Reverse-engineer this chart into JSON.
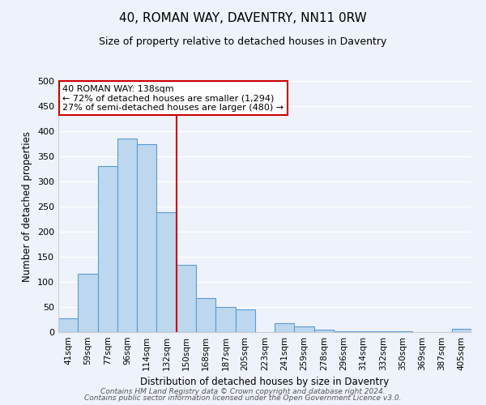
{
  "title": "40, ROMAN WAY, DAVENTRY, NN11 0RW",
  "subtitle": "Size of property relative to detached houses in Daventry",
  "xlabel": "Distribution of detached houses by size in Daventry",
  "ylabel": "Number of detached properties",
  "categories": [
    "41sqm",
    "59sqm",
    "77sqm",
    "96sqm",
    "114sqm",
    "132sqm",
    "150sqm",
    "168sqm",
    "187sqm",
    "205sqm",
    "223sqm",
    "241sqm",
    "259sqm",
    "278sqm",
    "296sqm",
    "314sqm",
    "332sqm",
    "350sqm",
    "369sqm",
    "387sqm",
    "405sqm"
  ],
  "values": [
    28,
    116,
    330,
    385,
    375,
    238,
    134,
    68,
    50,
    45,
    0,
    18,
    12,
    5,
    2,
    1,
    1,
    1,
    0,
    0,
    6
  ],
  "bar_color": "#bdd7ee",
  "bar_edge_color": "#5b9bd5",
  "ylim": [
    0,
    500
  ],
  "yticks": [
    0,
    50,
    100,
    150,
    200,
    250,
    300,
    350,
    400,
    450,
    500
  ],
  "property_line_x": 5.5,
  "property_line_color": "#cc0000",
  "annotation_title": "40 ROMAN WAY: 138sqm",
  "annotation_line1": "← 72% of detached houses are smaller (1,294)",
  "annotation_line2": "27% of semi-detached houses are larger (480) →",
  "annotation_box_color": "#ffffff",
  "annotation_box_edge_color": "#cc0000",
  "background_color": "#eef2fa",
  "grid_color": "#ffffff",
  "footer1": "Contains HM Land Registry data © Crown copyright and database right 2024.",
  "footer2": "Contains public sector information licensed under the Open Government Licence v3.0."
}
